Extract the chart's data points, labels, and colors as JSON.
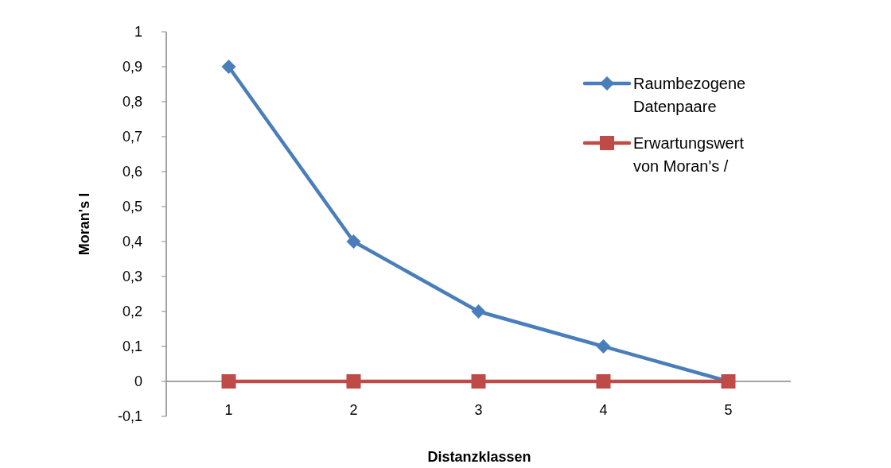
{
  "chart_data": {
    "type": "line",
    "xlabel": "Distanzklassen",
    "ylabel": "Moran's I",
    "categories": [
      "1",
      "2",
      "3",
      "4",
      "5"
    ],
    "series": [
      {
        "name": "Raumbezogene Datenpaare",
        "color": "#4a7ebb",
        "values": [
          0.9,
          0.4,
          0.2,
          0.1,
          0
        ],
        "marker": "diamond"
      },
      {
        "name": "Erwartungswert von Moran's /",
        "color": "#be4b48",
        "values": [
          0,
          0,
          0,
          0,
          0
        ],
        "marker": "square"
      }
    ],
    "ylim": [
      -0.1,
      1
    ],
    "yticks": [
      {
        "value": -0.1,
        "label": "-0,1"
      },
      {
        "value": 0,
        "label": "0"
      },
      {
        "value": 0.1,
        "label": "0,1"
      },
      {
        "value": 0.2,
        "label": "0,2"
      },
      {
        "value": 0.3,
        "label": "0,3"
      },
      {
        "value": 0.4,
        "label": "0,4"
      },
      {
        "value": 0.5,
        "label": "0,5"
      },
      {
        "value": 0.6,
        "label": "0,6"
      },
      {
        "value": 0.7,
        "label": "0,7"
      },
      {
        "value": 0.8,
        "label": "0,8"
      },
      {
        "value": 0.9,
        "label": "0,9"
      },
      {
        "value": 1,
        "label": "1"
      }
    ],
    "grid": false,
    "legend": "top right",
    "line_style": "solid"
  }
}
